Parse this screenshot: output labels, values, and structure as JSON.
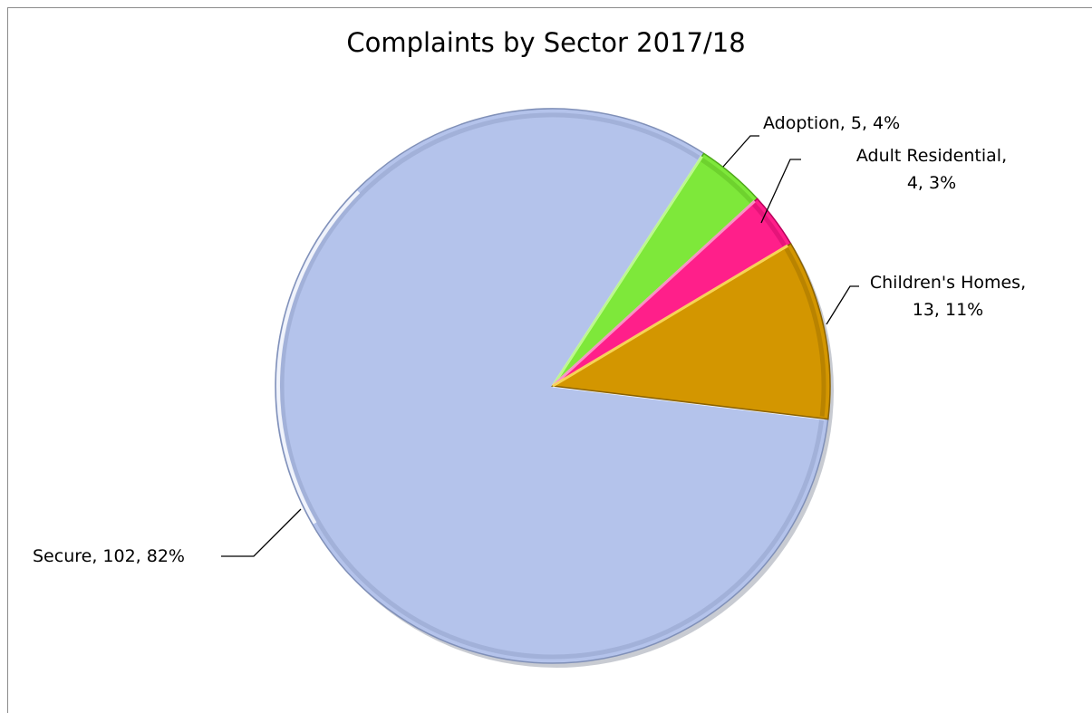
{
  "chart_data": {
    "type": "pie",
    "title": "Complaints by Sector 2017/18",
    "slices": [
      {
        "name": "Adoption",
        "value": 5,
        "percent": "4%",
        "color": "#7ee83a",
        "label_lines": [
          "Adoption, 5, 4%"
        ]
      },
      {
        "name": "Adult Residential",
        "value": 4,
        "percent": "3%",
        "color": "#ff1f8a",
        "label_lines": [
          "Adult Residential,",
          "4, 3%"
        ]
      },
      {
        "name": "Children's Homes",
        "value": 13,
        "percent": "11%",
        "color": "#d39600",
        "label_lines": [
          "Children's Homes,",
          "13, 11%"
        ]
      },
      {
        "name": "Secure",
        "value": 102,
        "percent": "82%",
        "color": "#b4c3eb",
        "label_lines": [
          "Secure, 102, 82%"
        ]
      }
    ],
    "legend": "none",
    "data_labels": "outside with leader lines"
  }
}
